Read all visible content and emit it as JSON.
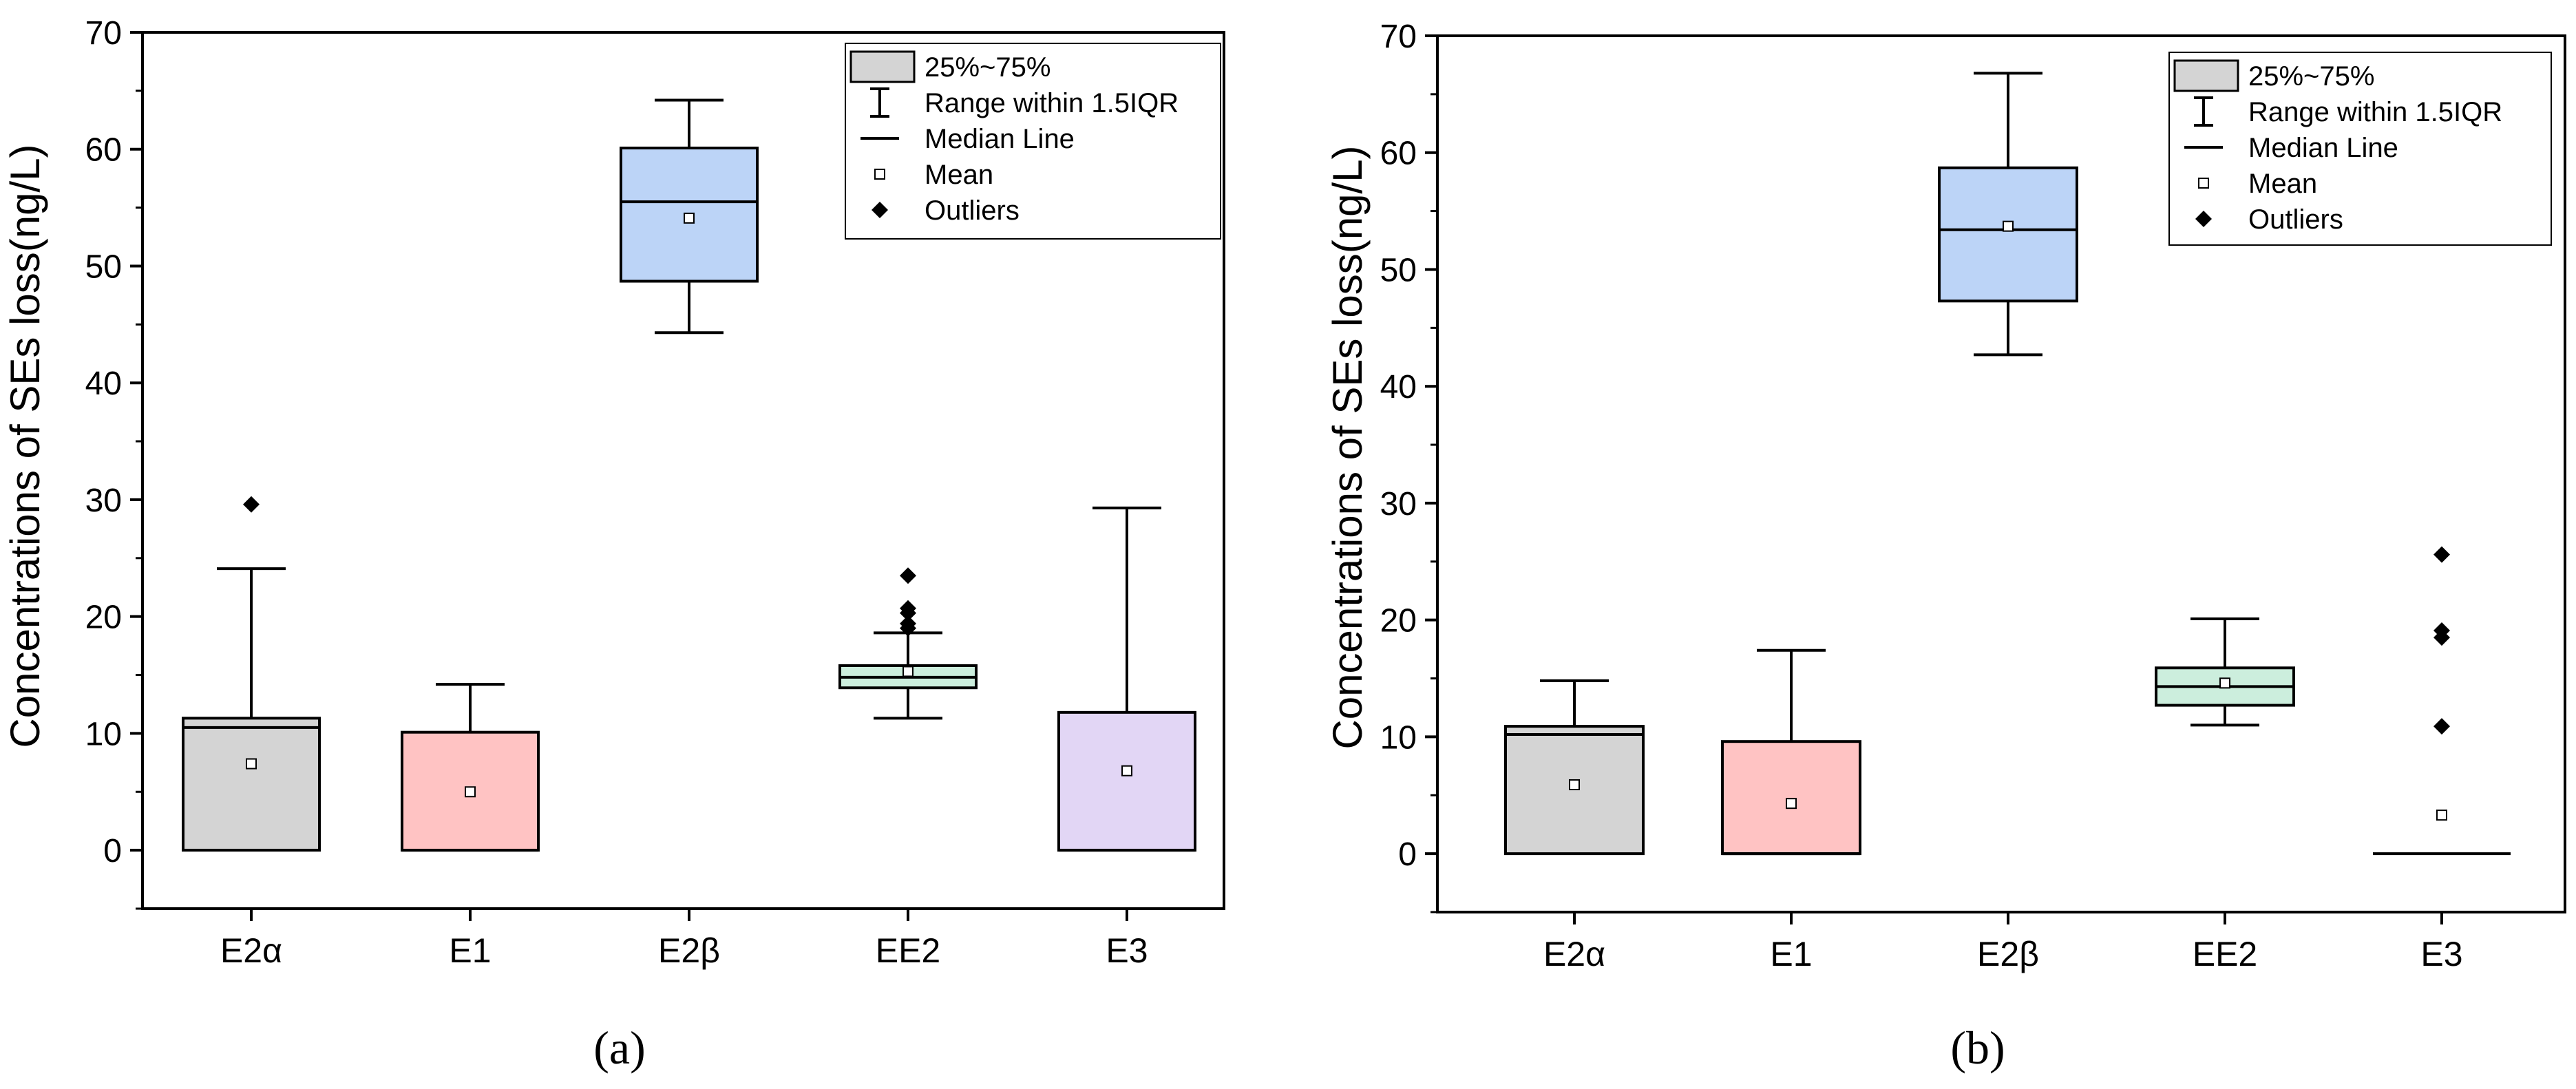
{
  "chart_data": [
    {
      "type": "box",
      "panel_label": "(a)",
      "ylabel": "Concentrations of SEs loss(ng/L)",
      "ylim": [
        -5,
        70
      ],
      "yticks": [
        0,
        10,
        20,
        30,
        40,
        50,
        60,
        70
      ],
      "categories": [
        "E2α",
        "E1",
        "E2β",
        "EE2",
        "E3"
      ],
      "colors": [
        "#d4d4d4",
        "#ffc3c3",
        "#bcd4f7",
        "#cceedd",
        "#e2d6f5"
      ],
      "boxes": [
        {
          "category": "E2α",
          "min": 0,
          "q1": 0,
          "median": 10.5,
          "q3": 11.3,
          "max": 24.1,
          "mean": 7.4,
          "outliers": [
            29.6
          ]
        },
        {
          "category": "E1",
          "min": 0,
          "q1": 0,
          "median": 0,
          "q3": 10.1,
          "max": 14.2,
          "mean": 5.0,
          "outliers": []
        },
        {
          "category": "E2β",
          "min": 44.3,
          "q1": 48.7,
          "median": 55.5,
          "q3": 60.1,
          "max": 64.2,
          "mean": 54.1,
          "outliers": []
        },
        {
          "category": "EE2",
          "min": 11.3,
          "q1": 13.9,
          "median": 14.8,
          "q3": 15.8,
          "max": 18.6,
          "mean": 15.3,
          "outliers": [
            19.0,
            19.4,
            20.3,
            20.7,
            23.5
          ]
        },
        {
          "category": "E3",
          "min": 0,
          "q1": 0,
          "median": 0,
          "q3": 11.8,
          "max": 29.3,
          "mean": 6.8,
          "outliers": []
        }
      ]
    },
    {
      "type": "box",
      "panel_label": "(b)",
      "ylabel": "Concentrations of SEs loss(ng/L)",
      "ylim": [
        -5,
        70
      ],
      "yticks": [
        0,
        10,
        20,
        30,
        40,
        50,
        60,
        70
      ],
      "categories": [
        "E2α",
        "E1",
        "E2β",
        "EE2",
        "E3"
      ],
      "colors": [
        "#d4d4d4",
        "#ffc3c3",
        "#bcd4f7",
        "#cceedd",
        "#e2d6f5"
      ],
      "boxes": [
        {
          "category": "E2α",
          "min": 0,
          "q1": 0,
          "median": 10.2,
          "q3": 10.9,
          "max": 14.8,
          "mean": 5.9,
          "outliers": []
        },
        {
          "category": "E1",
          "min": 0,
          "q1": 0,
          "median": 0,
          "q3": 9.6,
          "max": 17.4,
          "mean": 4.3,
          "outliers": []
        },
        {
          "category": "E2β",
          "min": 42.7,
          "q1": 47.3,
          "median": 53.4,
          "q3": 58.7,
          "max": 66.8,
          "mean": 53.7,
          "outliers": []
        },
        {
          "category": "EE2",
          "min": 11.0,
          "q1": 12.7,
          "median": 14.3,
          "q3": 15.9,
          "max": 20.1,
          "mean": 14.6,
          "outliers": []
        },
        {
          "category": "E3",
          "min": 0,
          "q1": 0,
          "median": 0,
          "q3": 0,
          "max": 0,
          "mean": 3.3,
          "outliers": [
            10.9,
            18.5,
            19.1,
            25.6
          ]
        }
      ]
    }
  ],
  "legend": {
    "box": "25%~75%",
    "range": "Range within 1.5IQR",
    "median": "Median Line",
    "mean": "Mean",
    "outliers": "Outliers"
  }
}
